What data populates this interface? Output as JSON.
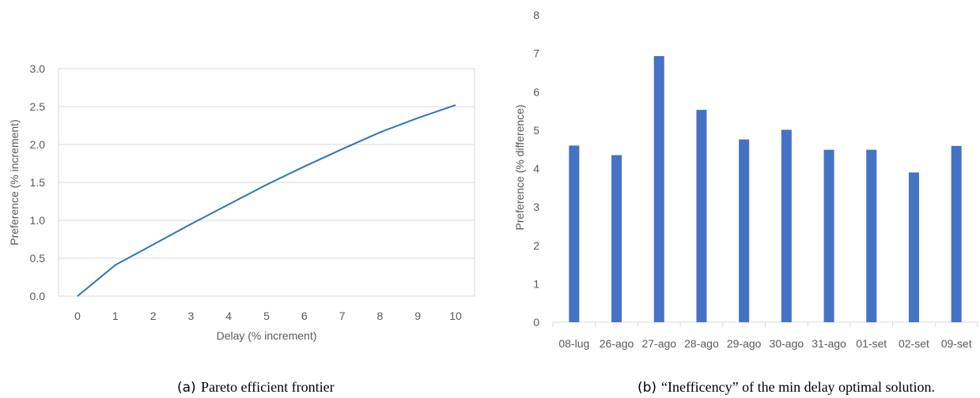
{
  "chart_data": [
    {
      "type": "line",
      "xlabel": "Delay (% increment)",
      "ylabel": "Preference (% increment)",
      "xlim": [
        0,
        10
      ],
      "ylim": [
        0,
        3
      ],
      "x_ticks": [
        "0",
        "1",
        "2",
        "3",
        "4",
        "5",
        "6",
        "7",
        "8",
        "9",
        "10"
      ],
      "y_ticks": [
        "0.0",
        "0.5",
        "1.0",
        "1.5",
        "2.0",
        "2.5",
        "3.0"
      ],
      "grid": "horizontal",
      "series": [
        {
          "x": [
            0,
            1,
            2,
            3,
            4,
            5,
            6,
            7,
            8,
            9,
            10
          ],
          "values": [
            0,
            0.41,
            0.68,
            0.95,
            1.21,
            1.47,
            1.71,
            1.94,
            2.16,
            2.35,
            2.52
          ]
        }
      ],
      "color": "#2e75b6",
      "caption_letter": "(a)",
      "caption": "Pareto efficient frontier"
    },
    {
      "type": "bar",
      "ylabel": "Preference (% difference)",
      "ylim": [
        0,
        8
      ],
      "y_ticks": [
        "0",
        "1",
        "2",
        "3",
        "4",
        "5",
        "6",
        "7",
        "8"
      ],
      "categories": [
        "08-lug",
        "26-ago",
        "27-ago",
        "28-ago",
        "29-ago",
        "30-ago",
        "31-ago",
        "01-set",
        "02-set",
        "09-set"
      ],
      "values": [
        4.6,
        4.35,
        6.93,
        5.53,
        4.76,
        5.01,
        4.49,
        4.49,
        3.9,
        4.59
      ],
      "grid": "none",
      "color": "#4472c4",
      "caption_letter": "(b)",
      "caption": "“Inefficency” of the min delay optimal solution."
    }
  ]
}
